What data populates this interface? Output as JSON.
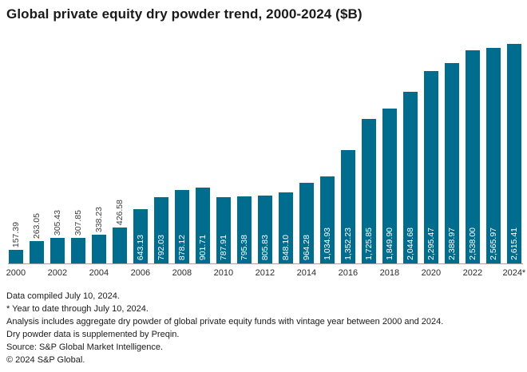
{
  "title": "Global private equity dry powder trend, 2000-2024 ($B)",
  "chart_data": {
    "type": "bar",
    "title": "Global private equity dry powder trend, 2000-2024 ($B)",
    "xlabel": "",
    "ylabel": "",
    "categories": [
      "2000",
      "2001",
      "2002",
      "2003",
      "2004",
      "2005",
      "2006",
      "2007",
      "2008",
      "2009",
      "2010",
      "2011",
      "2012",
      "2013",
      "2014",
      "2015",
      "2016",
      "2017",
      "2018",
      "2019",
      "2020",
      "2021",
      "2022",
      "2023",
      "2024"
    ],
    "values": [
      157.39,
      263.05,
      305.43,
      307.85,
      338.23,
      426.58,
      643.13,
      792.03,
      878.12,
      901.71,
      787.91,
      795.38,
      805.83,
      848.1,
      964.28,
      1034.93,
      1352.23,
      1725.85,
      1849.9,
      2044.68,
      2295.47,
      2388.97,
      2538.0,
      2565.97,
      2615.41
    ],
    "value_labels": [
      "157.39",
      "263.05",
      "305.43",
      "307.85",
      "338.23",
      "426.58",
      "643.13",
      "792.03",
      "878.12",
      "901.71",
      "787.91",
      "795.38",
      "805.83",
      "848.10",
      "964.28",
      "1,034.93",
      "1,352.23",
      "1,725.85",
      "1,849.90",
      "2,044.68",
      "2,295.47",
      "2,388.97",
      "2,538.00",
      "2,565.97",
      "2,615.41"
    ],
    "x_tick_labels": [
      "2000",
      "2002",
      "2004",
      "2006",
      "2008",
      "2010",
      "2012",
      "2014",
      "2016",
      "2018",
      "2020",
      "2022",
      "2024*"
    ],
    "ylim": [
      0,
      2700
    ],
    "grid": false,
    "legend": "none",
    "bar_color": "#006d8e",
    "label_color_inside": "#ffffff",
    "label_color_outside": "#3d3d3d",
    "inside_label_threshold": 500
  },
  "footnotes": [
    "Data compiled July 10, 2024.",
    "* Year to date through July 10, 2024.",
    "Analysis includes aggregate dry powder of global private equity funds with vintage year between 2000 and 2024.",
    "Dry powder data is supplemented by Preqin.",
    "Source: S&P Global Market Intelligence.",
    "© 2024 S&P Global."
  ]
}
